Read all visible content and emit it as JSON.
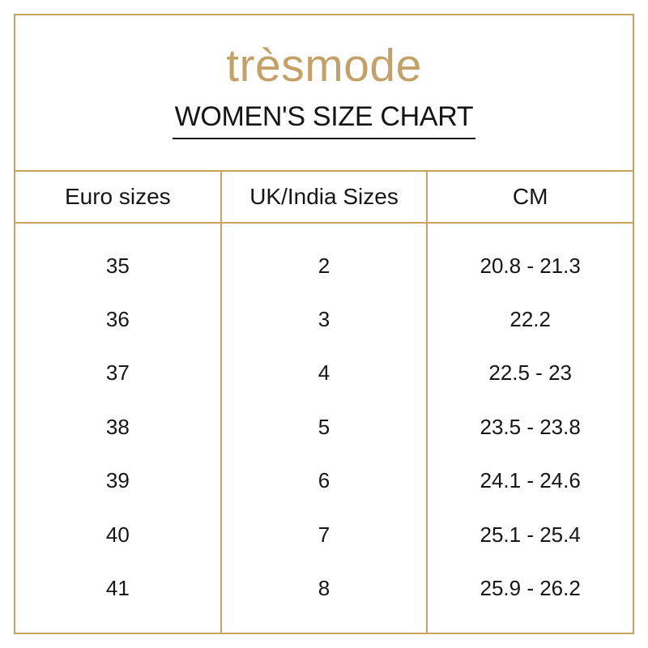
{
  "brand": {
    "logo_text": "trèsmode"
  },
  "colors": {
    "gold_lines": "#c9a45e",
    "logo_gold": "#c2a269",
    "text": "#161616",
    "background": "#ffffff"
  },
  "chart_data": {
    "type": "table",
    "title": "WOMEN'S SIZE CHART",
    "columns": [
      "Euro sizes",
      "UK/India Sizes",
      "CM"
    ],
    "rows": [
      [
        "35",
        "2",
        "20.8 - 21.3"
      ],
      [
        "36",
        "3",
        "22.2"
      ],
      [
        "37",
        "4",
        "22.5 - 23"
      ],
      [
        "38",
        "5",
        "23.5 - 23.8"
      ],
      [
        "39",
        "6",
        "24.1 - 24.6"
      ],
      [
        "40",
        "7",
        "25.1 - 25.4"
      ],
      [
        "41",
        "8",
        "25.9 - 26.2"
      ]
    ]
  }
}
